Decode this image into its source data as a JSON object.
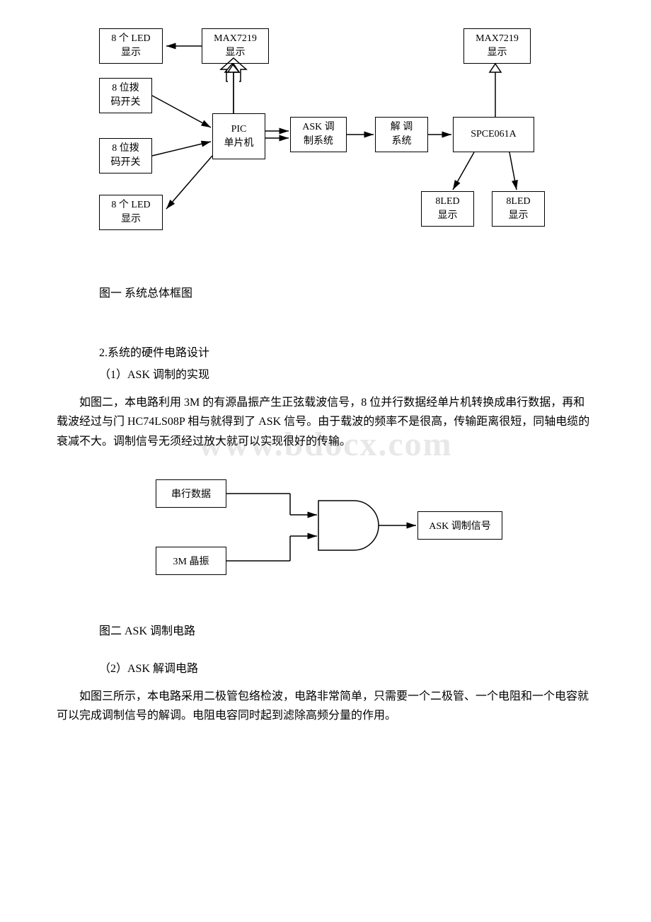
{
  "watermark": "www.bdocx.com",
  "diagram1": {
    "boxes": {
      "led1": "8 个 LED\n显示",
      "max7219_left": "MAX7219\n显示",
      "max7219_right": "MAX7219\n显示",
      "dip1": "8 位拨\n码开关",
      "dip2": "8 位拨\n码开关",
      "pic": "PIC\n单片机",
      "ask_mod": "ASK 调\n制系统",
      "demod": "解    调\n系统",
      "spce": "SPCE061A",
      "led2": "8 个 LED\n显示",
      "led3_bl": "8LED\n显示",
      "led3_br": "8LED\n显示"
    },
    "caption": "图一 系统总体框图"
  },
  "section2_title": "2.系统的硬件电路设计",
  "sub1_title": "（1）ASK 调制的实现",
  "sub1_para": "如图二，本电路利用 3M 的有源晶振产生正弦载波信号，8 位并行数据经单片机转换成串行数据，再和载波经过与门 HC74LS08P 相与就得到了 ASK 信号。由于载波的频率不是很高，传输距离很短，同轴电缆的衰减不大。调制信号无须经过放大就可以实现很好的传输。",
  "diagram2": {
    "serial_data": "串行数据",
    "osc": "3M 晶振",
    "output": "ASK 调制信号",
    "caption": "图二 ASK 调制电路"
  },
  "sub2_title": "（2）ASK 解调电路",
  "sub2_para": "如图三所示，本电路采用二极管包络检波，电路非常简单，只需要一个二极管、一个电阻和一个电容就可以完成调制信号的解调。电阻电容同时起到滤除高频分量的作用。"
}
